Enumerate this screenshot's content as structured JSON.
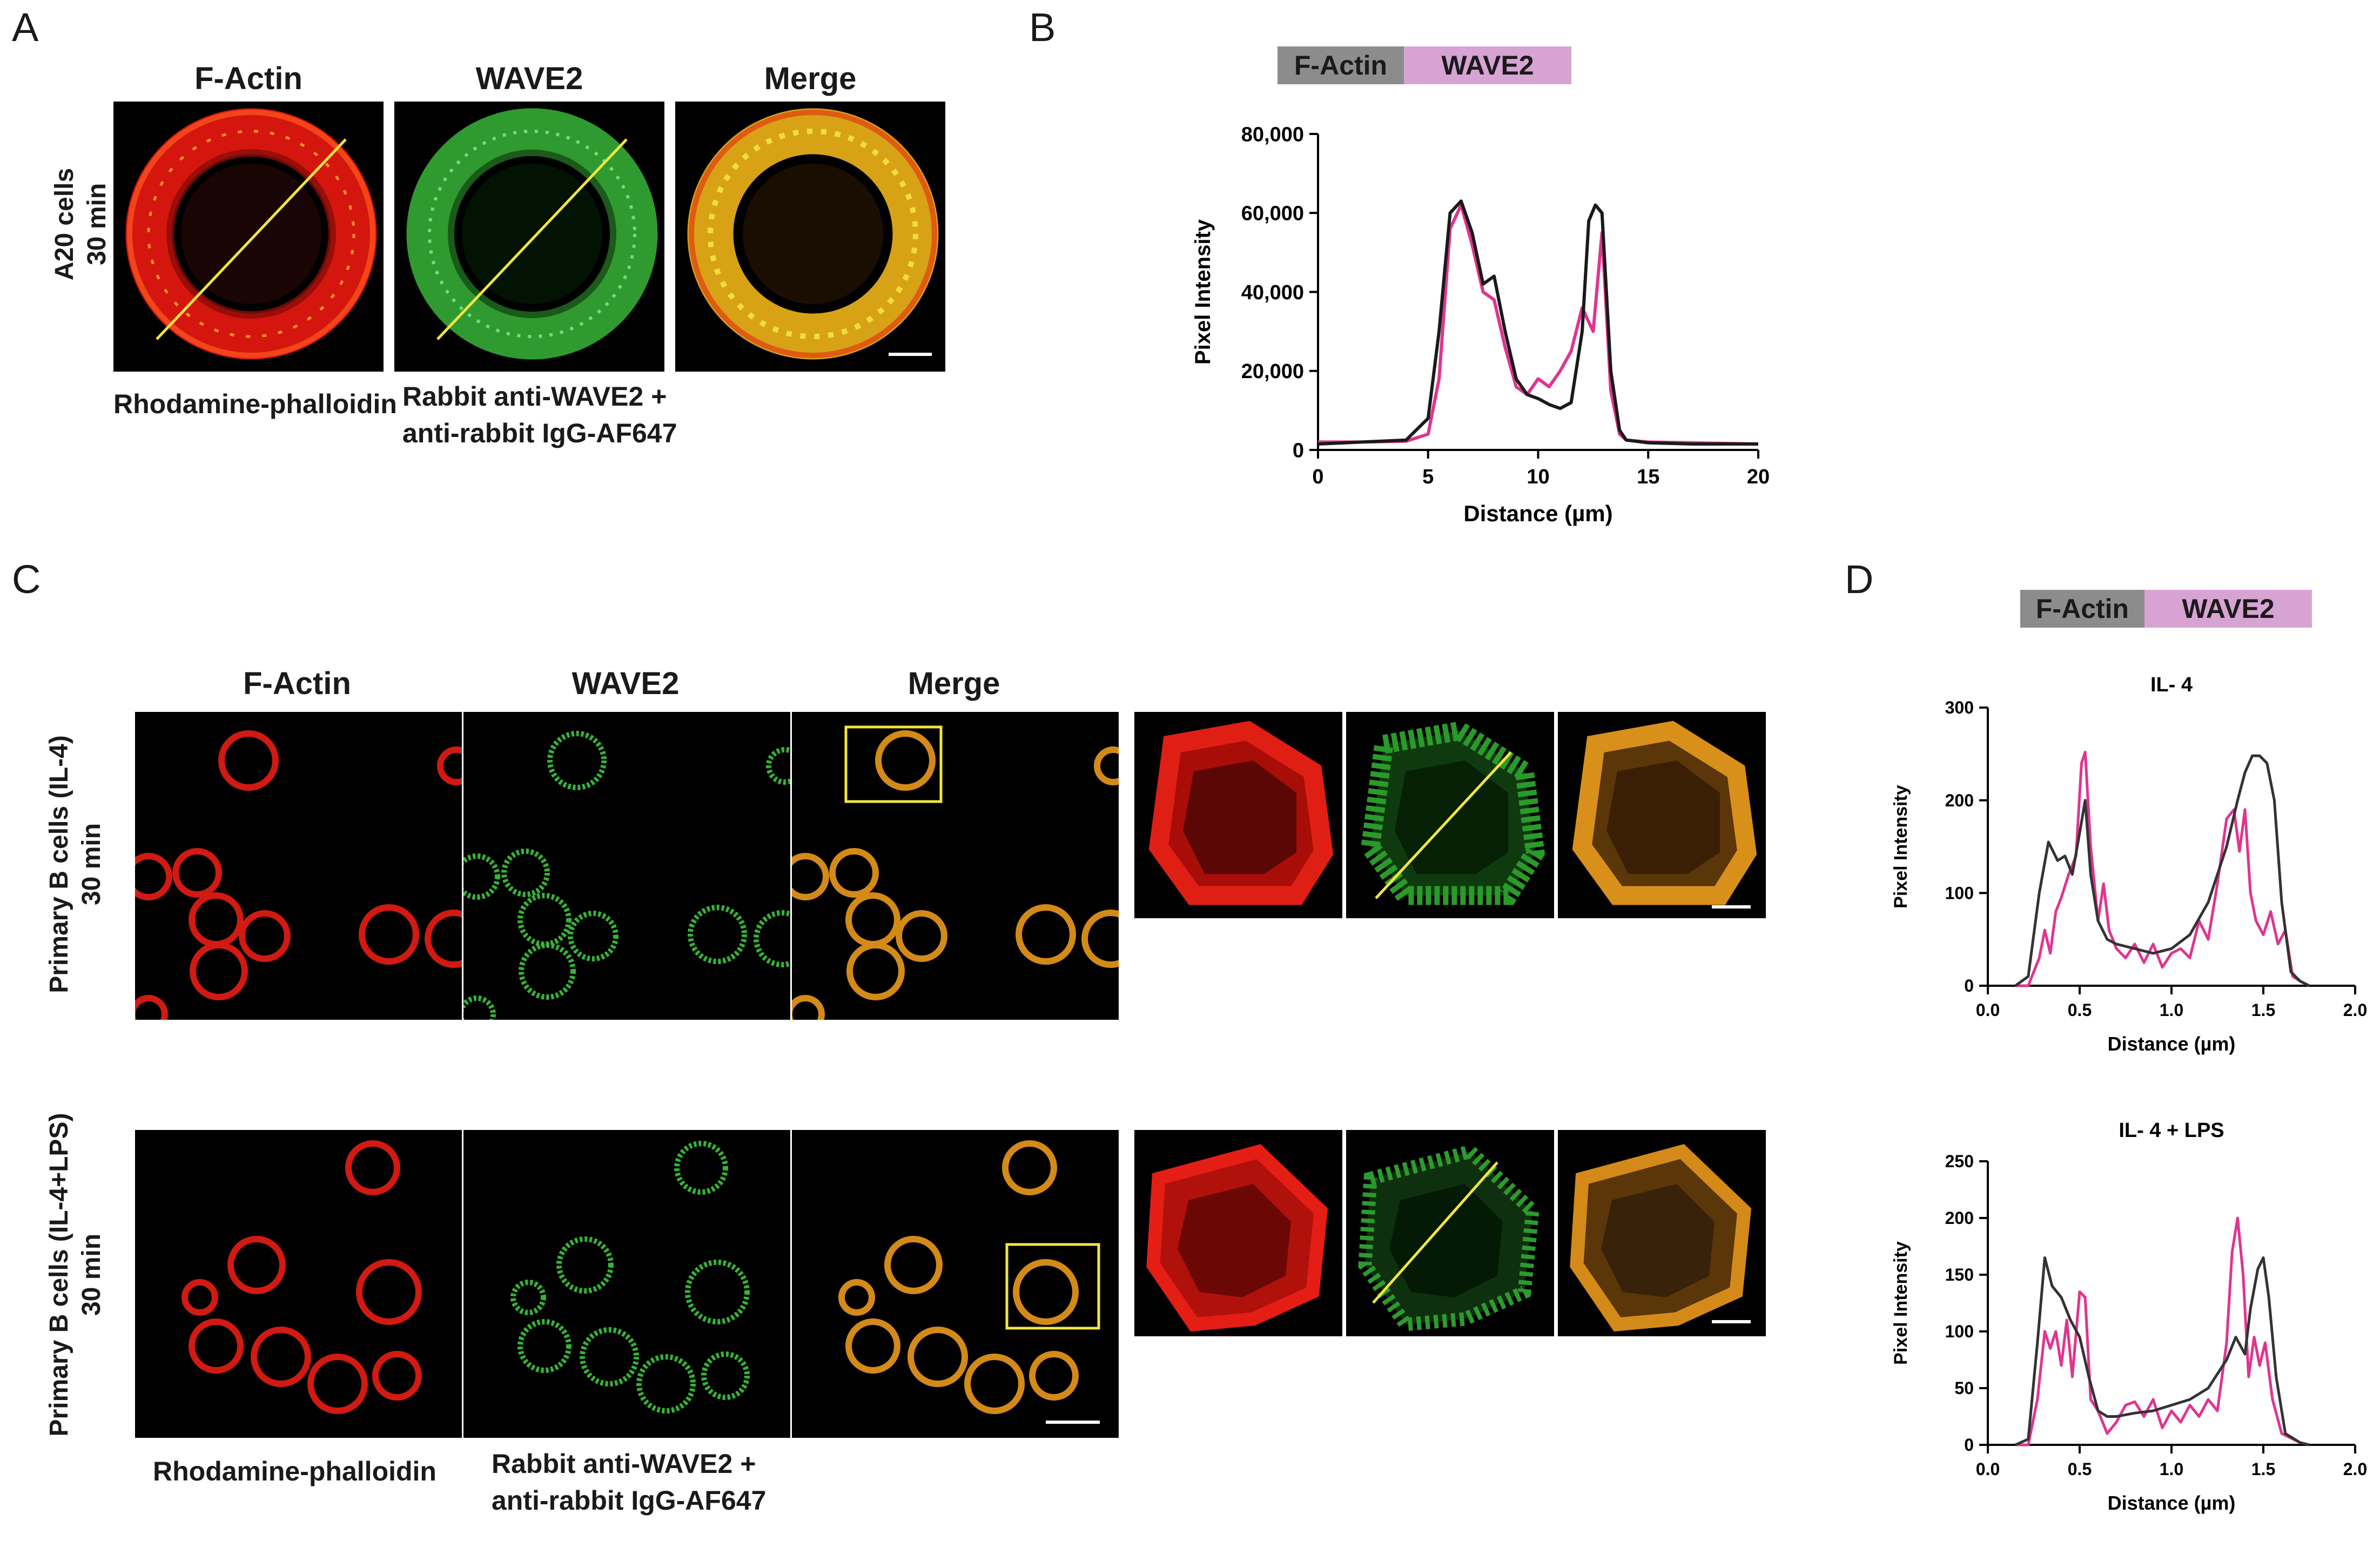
{
  "panels": {
    "A": {
      "letter": "A",
      "headers": [
        "F-Actin",
        "WAVE2",
        "Merge"
      ],
      "row_label": [
        "A20 cells",
        "30 min"
      ],
      "caption_left": "Rhodamine-phalloidin",
      "caption_mid": [
        "Rabbit anti-WAVE2 +",
        "anti-rabbit IgG-AF647"
      ]
    },
    "B": {
      "letter": "B"
    },
    "C": {
      "letter": "C",
      "headers": [
        "F-Actin",
        "WAVE2",
        "Merge"
      ],
      "row1_label": [
        "Primary B cells (IL-4)",
        "30 min"
      ],
      "row2_label": [
        "Primary B cells (IL-4+LPS)",
        "30 min"
      ],
      "caption_left": "Rhodamine-phalloidin",
      "caption_mid": [
        "Rabbit anti-WAVE2 +",
        "anti-rabbit IgG-AF647"
      ]
    },
    "D": {
      "letter": "D"
    }
  },
  "legend": {
    "actin": "F-Actin",
    "wave2": "WAVE2"
  },
  "colors": {
    "actin_line": "#1a1a1a",
    "wave2_line": "#e0348f",
    "yellow_line": "#f2e640",
    "legend_actin": "#8c8c8c",
    "legend_wave2": "#d7a3d3"
  },
  "chart_data": [
    {
      "type": "line",
      "panel": "B",
      "title": "",
      "xlabel": "Distance  (µm)",
      "ylabel": "Pixel Intensity",
      "xlim": [
        0,
        20
      ],
      "ylim": [
        0,
        80000
      ],
      "xticks": [
        "0",
        "5",
        "10",
        "15",
        "20"
      ],
      "yticks": [
        "0",
        "20,000",
        "40,000",
        "60,000",
        "80,000"
      ],
      "series": [
        {
          "name": "F-Actin",
          "color": "#1a1a1a",
          "x": [
            0,
            2,
            4,
            5,
            5.5,
            6,
            6.5,
            7,
            7.5,
            8,
            8.5,
            9,
            9.5,
            10,
            10.5,
            11,
            11.5,
            12,
            12.3,
            12.6,
            12.9,
            13.3,
            13.7,
            14,
            15,
            17,
            20
          ],
          "y": [
            1500,
            2000,
            2500,
            8000,
            30000,
            60000,
            63000,
            55000,
            42000,
            44000,
            30000,
            18000,
            14000,
            13000,
            11500,
            10500,
            12000,
            30000,
            58000,
            62000,
            60000,
            20000,
            5000,
            2500,
            1800,
            1500,
            1500
          ]
        },
        {
          "name": "WAVE2",
          "color": "#e0348f",
          "x": [
            0,
            2,
            4,
            5,
            5.5,
            6,
            6.5,
            7,
            7.5,
            8,
            8.5,
            9,
            9.5,
            10,
            10.5,
            11,
            11.5,
            12,
            12.5,
            12.9,
            13.3,
            13.7,
            14,
            15,
            17,
            20
          ],
          "y": [
            2000,
            2000,
            2200,
            4000,
            18000,
            56000,
            62000,
            52000,
            40000,
            38000,
            26000,
            16000,
            14000,
            18000,
            16000,
            20000,
            25000,
            36000,
            30000,
            55000,
            15000,
            4000,
            2500,
            2000,
            1800,
            1500
          ]
        }
      ]
    },
    {
      "type": "line",
      "panel": "D-top",
      "title": "IL- 4",
      "xlabel": "Distance  (µm)",
      "ylabel": "Pixel Intensity",
      "xlim": [
        0,
        2
      ],
      "ylim": [
        0,
        300
      ],
      "xticks": [
        "0.0",
        "0.5",
        "1.0",
        "1.5",
        "2.0"
      ],
      "yticks": [
        "0",
        "100",
        "200",
        "300"
      ],
      "series": [
        {
          "name": "F-Actin",
          "color": "#333333",
          "x": [
            0.15,
            0.22,
            0.28,
            0.33,
            0.38,
            0.42,
            0.46,
            0.5,
            0.53,
            0.56,
            0.6,
            0.65,
            0.7,
            0.8,
            0.9,
            1.0,
            1.1,
            1.2,
            1.3,
            1.36,
            1.4,
            1.44,
            1.48,
            1.52,
            1.56,
            1.6,
            1.65,
            1.7,
            1.75
          ],
          "y": [
            0,
            10,
            100,
            155,
            135,
            140,
            120,
            165,
            200,
            120,
            70,
            50,
            45,
            40,
            35,
            40,
            55,
            90,
            150,
            200,
            230,
            248,
            248,
            240,
            200,
            90,
            15,
            5,
            0
          ]
        },
        {
          "name": "WAVE2",
          "color": "#e0348f",
          "x": [
            0.15,
            0.22,
            0.28,
            0.31,
            0.34,
            0.37,
            0.4,
            0.44,
            0.48,
            0.51,
            0.53,
            0.56,
            0.6,
            0.63,
            0.66,
            0.7,
            0.75,
            0.8,
            0.85,
            0.9,
            0.95,
            1.0,
            1.05,
            1.1,
            1.15,
            1.2,
            1.25,
            1.3,
            1.34,
            1.37,
            1.4,
            1.43,
            1.46,
            1.5,
            1.54,
            1.58,
            1.62,
            1.66,
            1.7,
            1.75
          ],
          "y": [
            0,
            0,
            30,
            60,
            35,
            80,
            95,
            120,
            140,
            240,
            252,
            150,
            70,
            110,
            60,
            40,
            30,
            45,
            25,
            45,
            20,
            35,
            40,
            30,
            70,
            50,
            110,
            180,
            190,
            145,
            190,
            100,
            70,
            55,
            80,
            45,
            60,
            10,
            5,
            0
          ]
        }
      ]
    },
    {
      "type": "line",
      "panel": "D-bottom",
      "title": "IL- 4 + LPS",
      "xlabel": "Distance  (µm)",
      "ylabel": "Pixel Intensity",
      "xlim": [
        0,
        2
      ],
      "ylim": [
        0,
        250
      ],
      "xticks": [
        "0.0",
        "0.5",
        "1.0",
        "1.5",
        "2.0"
      ],
      "yticks": [
        "0",
        "50",
        "100",
        "150",
        "200",
        "250"
      ],
      "series": [
        {
          "name": "F-Actin",
          "color": "#333333",
          "x": [
            0.15,
            0.22,
            0.27,
            0.31,
            0.35,
            0.4,
            0.45,
            0.5,
            0.55,
            0.6,
            0.65,
            0.7,
            0.8,
            0.9,
            1.0,
            1.1,
            1.2,
            1.3,
            1.35,
            1.4,
            1.43,
            1.47,
            1.5,
            1.53,
            1.57,
            1.62,
            1.7,
            1.75
          ],
          "y": [
            0,
            5,
            90,
            165,
            140,
            130,
            110,
            95,
            60,
            30,
            25,
            25,
            28,
            30,
            35,
            40,
            50,
            75,
            95,
            80,
            120,
            155,
            165,
            130,
            60,
            10,
            2,
            0
          ]
        },
        {
          "name": "WAVE2",
          "color": "#e0348f",
          "x": [
            0.15,
            0.22,
            0.27,
            0.31,
            0.34,
            0.37,
            0.4,
            0.43,
            0.46,
            0.5,
            0.53,
            0.56,
            0.6,
            0.65,
            0.7,
            0.75,
            0.8,
            0.85,
            0.9,
            0.95,
            1.0,
            1.05,
            1.1,
            1.15,
            1.2,
            1.25,
            1.3,
            1.33,
            1.36,
            1.39,
            1.42,
            1.45,
            1.48,
            1.51,
            1.55,
            1.6,
            1.7,
            1.75
          ],
          "y": [
            0,
            0,
            40,
            100,
            85,
            100,
            70,
            110,
            60,
            135,
            130,
            40,
            30,
            10,
            20,
            35,
            38,
            25,
            40,
            15,
            30,
            20,
            35,
            25,
            40,
            30,
            90,
            170,
            200,
            150,
            60,
            95,
            70,
            90,
            40,
            10,
            2,
            0
          ]
        }
      ]
    }
  ]
}
